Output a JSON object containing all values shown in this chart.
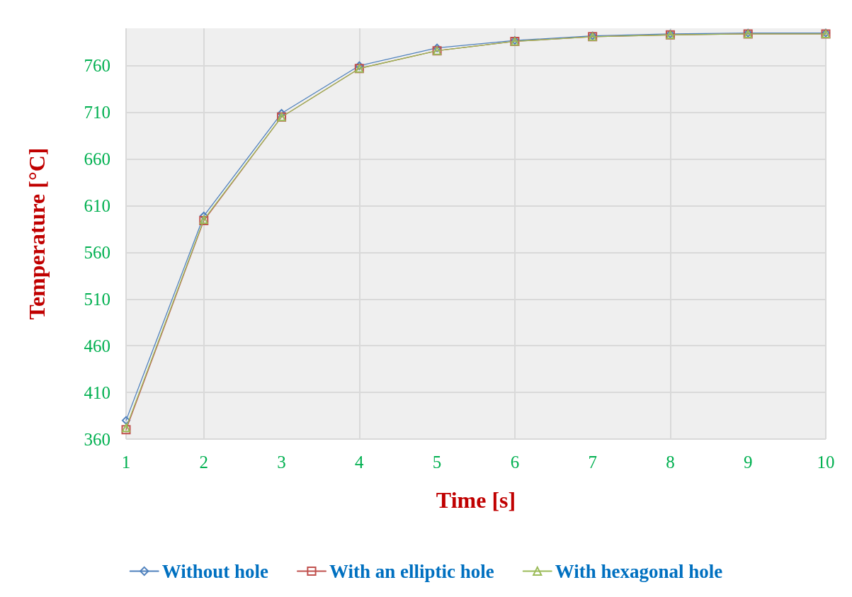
{
  "chart_data": {
    "type": "line",
    "xlabel": "Time [s]",
    "ylabel": "Temperature [°C]",
    "x": [
      1,
      2,
      3,
      4,
      5,
      6,
      7,
      8,
      9,
      10
    ],
    "xlim": [
      1,
      10
    ],
    "xticks": [
      1,
      2,
      3,
      4,
      5,
      6,
      7,
      8,
      9,
      10
    ],
    "ylim": [
      360,
      800
    ],
    "yticks": [
      360,
      410,
      460,
      510,
      560,
      610,
      660,
      710,
      760
    ],
    "grid": true,
    "legend": "bottom",
    "line_style": "solid",
    "series": [
      {
        "name": "Without hole",
        "color": "#4f81bd",
        "marker": "diamond",
        "values": [
          380,
          599,
          709,
          760,
          779,
          787,
          792,
          794,
          795,
          795
        ]
      },
      {
        "name": "With an elliptic hole",
        "color": "#c0504d",
        "marker": "square",
        "values": [
          370,
          594,
          705,
          757,
          776,
          786,
          791,
          793,
          794,
          794
        ]
      },
      {
        "name": "With hexagonal hole",
        "color": "#9bbb59",
        "marker": "triangle",
        "values": [
          372,
          595,
          705,
          757,
          776,
          786,
          791,
          793,
          794,
          794
        ]
      }
    ]
  }
}
